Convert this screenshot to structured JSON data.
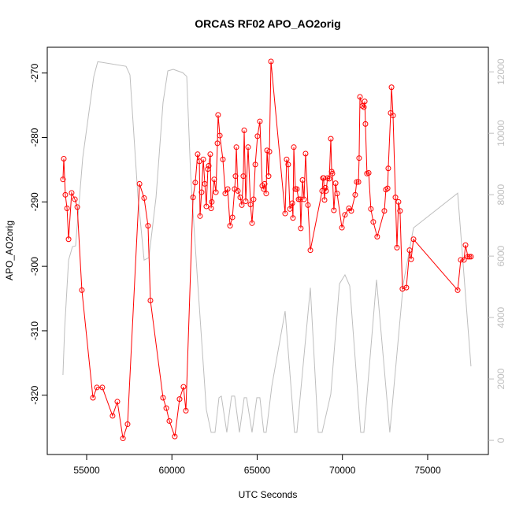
{
  "chart_data": {
    "type": "line",
    "title": "ORCAS RF02 APO_AO2orig",
    "xlabel": "UTC Seconds",
    "ylabel": "APO_AO2orig",
    "xlim": [
      52690,
      78560
    ],
    "xticks": [
      55000,
      60000,
      65000,
      70000,
      75000
    ],
    "ylim": [
      -329.2,
      -266
    ],
    "yticks": [
      -320,
      -310,
      -300,
      -290,
      -280,
      -270
    ],
    "y2lim": [
      -460,
      12800
    ],
    "y2ticks": [
      0,
      2000,
      4000,
      6000,
      8000,
      10000,
      12000
    ],
    "series": [
      {
        "color": "#bebebe",
        "axis": "y2",
        "markers": false,
        "x": [
          53610,
          53710,
          53940,
          54170,
          54350,
          54770,
          55420,
          55650,
          57310,
          57540,
          58000,
          58370,
          58650,
          59070,
          59480,
          59760,
          60080,
          60640,
          60870,
          61100,
          61470,
          62020,
          62300,
          62530,
          62760,
          62900,
          63220,
          63500,
          63680,
          63960,
          64240,
          64380,
          64700,
          64980,
          65160,
          65390,
          65530,
          65860,
          66640,
          67190,
          67330,
          68120,
          68580,
          68810,
          69320,
          69830,
          70150,
          70430,
          71070,
          71260,
          72000,
          72780,
          73570,
          74170,
          76760,
          77540
        ],
        "values": [
          2130,
          3640,
          5870,
          6310,
          6330,
          9200,
          11850,
          12330,
          12180,
          11900,
          8000,
          5870,
          5950,
          7920,
          11000,
          12030,
          12080,
          11970,
          11850,
          8640,
          5490,
          1000,
          260,
          260,
          1390,
          1440,
          260,
          1440,
          1440,
          260,
          1390,
          1390,
          260,
          1390,
          1390,
          260,
          260,
          1770,
          4210,
          260,
          260,
          4970,
          260,
          260,
          1510,
          5100,
          5390,
          5030,
          260,
          260,
          5230,
          260,
          5100,
          6920,
          8050,
          2410
        ]
      },
      {
        "color": "#ff0000",
        "markers": true,
        "x": [
          53610,
          53660,
          53750,
          53850,
          53940,
          54120,
          54310,
          54450,
          54720,
          55370,
          55600,
          55920,
          56520,
          56800,
          57130,
          57400,
          58100,
          58370,
          58600,
          58740,
          59480,
          59670,
          59850,
          60170,
          60450,
          60680,
          60820,
          61240,
          61370,
          61510,
          61610,
          61650,
          61740,
          61840,
          61930,
          62020,
          62110,
          62160,
          62250,
          62300,
          62340,
          62480,
          62580,
          62670,
          62710,
          62810,
          62990,
          63130,
          63270,
          63410,
          63550,
          63680,
          63730,
          63780,
          63870,
          64010,
          64100,
          64190,
          64240,
          64330,
          64470,
          64610,
          64700,
          64790,
          64890,
          65020,
          65160,
          65300,
          65390,
          65440,
          65530,
          65580,
          65670,
          65720,
          65810,
          66640,
          66730,
          66820,
          66920,
          67060,
          67100,
          67150,
          67240,
          67330,
          67430,
          67520,
          67560,
          67660,
          67750,
          67840,
          67980,
          68120,
          68810,
          68860,
          68900,
          68950,
          69000,
          69040,
          69130,
          69230,
          69320,
          69370,
          69410,
          69500,
          69600,
          69690,
          69970,
          70150,
          70380,
          70520,
          70750,
          70840,
          70940,
          70980,
          71030,
          71170,
          71260,
          71310,
          71350,
          71440,
          71540,
          71670,
          71810,
          72040,
          72460,
          72550,
          72650,
          72690,
          72830,
          72880,
          72970,
          73110,
          73200,
          73290,
          73380,
          73520,
          73750,
          73940,
          74030,
          74170,
          76760,
          76940,
          77130,
          77220,
          77360,
          77450,
          77540
        ],
        "values": [
          -286.5,
          -283.3,
          -288.9,
          -291,
          -295.8,
          -288.6,
          -289.6,
          -290.8,
          -303.7,
          -320.4,
          -318.8,
          -318.8,
          -323.2,
          -321,
          -326.7,
          -324.5,
          -287.2,
          -289.4,
          -293.7,
          -305.3,
          -320.4,
          -322,
          -324,
          -326.4,
          -320.6,
          -318.7,
          -322.4,
          -289.3,
          -287,
          -282.6,
          -283.7,
          -292.2,
          -288.5,
          -283.4,
          -287.2,
          -290.7,
          -284.9,
          -284.4,
          -282.6,
          -291,
          -290,
          -286.5,
          -288.5,
          -280.9,
          -276.5,
          -279.7,
          -283.4,
          -288.7,
          -288,
          -293.7,
          -292.4,
          -288,
          -286,
          -281.5,
          -288.3,
          -289.3,
          -290.5,
          -286,
          -278.9,
          -289.9,
          -281.5,
          -290.4,
          -293.3,
          -289.6,
          -284.2,
          -279.8,
          -277.5,
          -287.5,
          -288,
          -287.2,
          -288.7,
          -282,
          -286,
          -282.2,
          -268.2,
          -291.8,
          -283.4,
          -284.2,
          -291.1,
          -290.2,
          -292.5,
          -281.5,
          -288,
          -288,
          -289.6,
          -289.6,
          -294.1,
          -286.6,
          -289.6,
          -282.5,
          -290.5,
          -297.5,
          -288.3,
          -286.3,
          -286.3,
          -289.7,
          -287.8,
          -288.3,
          -286.3,
          -286.4,
          -280.2,
          -285.3,
          -285.6,
          -291.3,
          -287.1,
          -288.7,
          -294,
          -292,
          -291,
          -291.4,
          -288.9,
          -286.9,
          -286.9,
          -283.2,
          -273.7,
          -275.1,
          -275.3,
          -274.4,
          -277.9,
          -285.6,
          -285.5,
          -291.1,
          -293.1,
          -295.4,
          -291.4,
          -288.1,
          -287.9,
          -284.8,
          -276.2,
          -272.2,
          -276.6,
          -289.3,
          -297.1,
          -290,
          -291.4,
          -303.5,
          -303.3,
          -297.5,
          -298.9,
          -295.8,
          -303.7,
          -299,
          -299,
          -296.7,
          -298.5,
          -298.5,
          -298.5
        ]
      }
    ]
  }
}
